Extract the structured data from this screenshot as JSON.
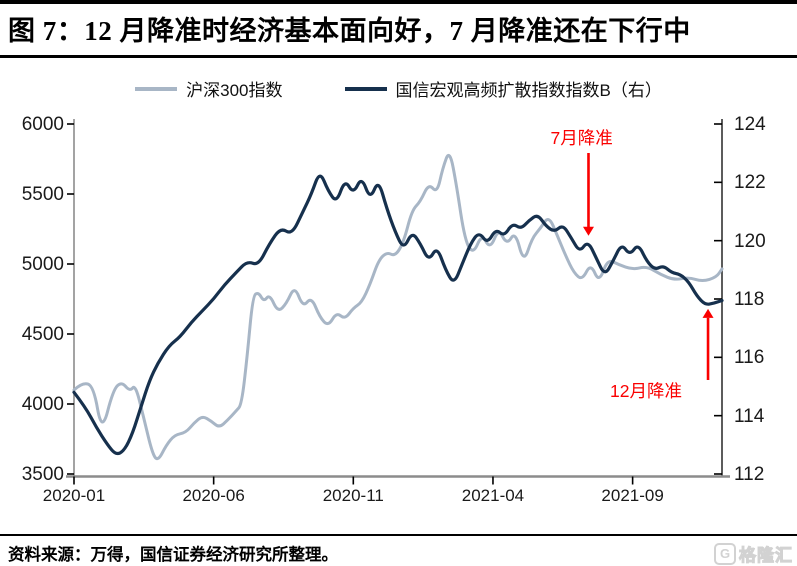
{
  "figure": {
    "title": "图 7：12 月降准时经济基本面向好，7 月降准还在下行中",
    "source_note": "资料来源：万得，国信证券经济研究所整理。",
    "watermark": {
      "icon_letter": "G",
      "text": "格隆汇"
    }
  },
  "colors": {
    "csi300": "#a8b6c6",
    "diffusion": "#16304d",
    "annotation_red": "#fa0000",
    "axis_line": "#8c8c8c",
    "tick_text": "#1a1a1a"
  },
  "legend": [
    {
      "id": "csi300",
      "label": "沪深300指数"
    },
    {
      "id": "diffusion",
      "label": "国信宏观高频扩散指数指数B（右）"
    }
  ],
  "chart_data": {
    "type": "line",
    "title": "",
    "x_unit": "months since 2020-01",
    "x_range": [
      0,
      23.2
    ],
    "x_tick_months": [
      0,
      5,
      10,
      15,
      20
    ],
    "x_tick_labels": [
      "2020-01",
      "2020-06",
      "2020-11",
      "2021-04",
      "2021-09"
    ],
    "left_axis": {
      "series": "沪深300指数",
      "range": [
        3500,
        6000
      ],
      "ticks": [
        6000,
        5500,
        5000,
        4500,
        4000,
        3500
      ]
    },
    "right_axis": {
      "series": "国信宏观高频扩散指数指数B",
      "range": [
        112,
        124
      ],
      "ticks": [
        124,
        122,
        120,
        118,
        116,
        114,
        112
      ]
    },
    "grid": false,
    "legend_position": "top",
    "series": [
      {
        "name": "沪深300指数",
        "axis": "left",
        "color_key": "csi300",
        "points": [
          [
            0,
            4100
          ],
          [
            0.3,
            4155
          ],
          [
            0.7,
            4130
          ],
          [
            1.0,
            3790
          ],
          [
            1.4,
            4100
          ],
          [
            1.7,
            4160
          ],
          [
            2.0,
            4090
          ],
          [
            2.2,
            4140
          ],
          [
            2.5,
            3900
          ],
          [
            2.8,
            3650
          ],
          [
            3.0,
            3590
          ],
          [
            3.3,
            3705
          ],
          [
            3.6,
            3780
          ],
          [
            4.0,
            3795
          ],
          [
            4.3,
            3865
          ],
          [
            4.6,
            3915
          ],
          [
            4.9,
            3880
          ],
          [
            5.2,
            3830
          ],
          [
            5.5,
            3885
          ],
          [
            5.8,
            3950
          ],
          [
            6.0,
            3995
          ],
          [
            6.2,
            4340
          ],
          [
            6.4,
            4770
          ],
          [
            6.6,
            4800
          ],
          [
            6.8,
            4730
          ],
          [
            7.0,
            4785
          ],
          [
            7.3,
            4655
          ],
          [
            7.6,
            4715
          ],
          [
            7.9,
            4845
          ],
          [
            8.2,
            4690
          ],
          [
            8.5,
            4765
          ],
          [
            8.8,
            4620
          ],
          [
            9.1,
            4555
          ],
          [
            9.4,
            4655
          ],
          [
            9.7,
            4605
          ],
          [
            10.0,
            4685
          ],
          [
            10.3,
            4725
          ],
          [
            10.6,
            4855
          ],
          [
            10.9,
            5025
          ],
          [
            11.2,
            5085
          ],
          [
            11.5,
            5055
          ],
          [
            11.8,
            5155
          ],
          [
            12.1,
            5385
          ],
          [
            12.4,
            5445
          ],
          [
            12.7,
            5575
          ],
          [
            13.0,
            5505
          ],
          [
            13.2,
            5685
          ],
          [
            13.45,
            5820
          ],
          [
            13.7,
            5555
          ],
          [
            14.0,
            5165
          ],
          [
            14.3,
            5070
          ],
          [
            14.6,
            5215
          ],
          [
            14.9,
            5105
          ],
          [
            15.2,
            5255
          ],
          [
            15.5,
            5135
          ],
          [
            15.8,
            5235
          ],
          [
            16.1,
            5005
          ],
          [
            16.4,
            5185
          ],
          [
            16.7,
            5255
          ],
          [
            17.0,
            5345
          ],
          [
            17.3,
            5205
          ],
          [
            17.6,
            5060
          ],
          [
            17.9,
            4935
          ],
          [
            18.2,
            4885
          ],
          [
            18.5,
            5005
          ],
          [
            18.8,
            4865
          ],
          [
            19.1,
            5035
          ],
          [
            19.5,
            4995
          ],
          [
            20.0,
            4960
          ],
          [
            20.5,
            4985
          ],
          [
            21.0,
            4925
          ],
          [
            21.5,
            4885
          ],
          [
            22.0,
            4905
          ],
          [
            22.5,
            4875
          ],
          [
            23.0,
            4905
          ],
          [
            23.2,
            4965
          ]
        ]
      },
      {
        "name": "国信宏观高频扩散指数指数B（右）",
        "axis": "right",
        "color_key": "diffusion",
        "points": [
          [
            0,
            114.8
          ],
          [
            0.4,
            114.3
          ],
          [
            0.8,
            113.6
          ],
          [
            1.2,
            113.0
          ],
          [
            1.5,
            112.65
          ],
          [
            1.8,
            112.8
          ],
          [
            2.1,
            113.4
          ],
          [
            2.4,
            114.3
          ],
          [
            2.7,
            115.2
          ],
          [
            3.0,
            115.8
          ],
          [
            3.4,
            116.4
          ],
          [
            3.8,
            116.7
          ],
          [
            4.2,
            117.2
          ],
          [
            4.6,
            117.6
          ],
          [
            5.0,
            118.0
          ],
          [
            5.4,
            118.5
          ],
          [
            5.8,
            118.9
          ],
          [
            6.2,
            119.3
          ],
          [
            6.6,
            119.15
          ],
          [
            7.0,
            119.9
          ],
          [
            7.4,
            120.45
          ],
          [
            7.8,
            120.2
          ],
          [
            8.2,
            121.0
          ],
          [
            8.5,
            121.6
          ],
          [
            8.8,
            122.4
          ],
          [
            9.1,
            121.7
          ],
          [
            9.4,
            121.3
          ],
          [
            9.7,
            122.1
          ],
          [
            10.0,
            121.6
          ],
          [
            10.3,
            122.2
          ],
          [
            10.6,
            121.4
          ],
          [
            10.9,
            122.1
          ],
          [
            11.2,
            121.1
          ],
          [
            11.5,
            120.3
          ],
          [
            11.8,
            119.7
          ],
          [
            12.1,
            120.3
          ],
          [
            12.4,
            119.9
          ],
          [
            12.7,
            119.3
          ],
          [
            13.0,
            119.8
          ],
          [
            13.3,
            119.0
          ],
          [
            13.6,
            118.5
          ],
          [
            13.9,
            119.2
          ],
          [
            14.2,
            119.9
          ],
          [
            14.5,
            120.3
          ],
          [
            14.8,
            119.9
          ],
          [
            15.1,
            120.4
          ],
          [
            15.4,
            120.15
          ],
          [
            15.7,
            120.6
          ],
          [
            16.0,
            120.4
          ],
          [
            16.3,
            120.7
          ],
          [
            16.6,
            120.9
          ],
          [
            16.9,
            120.5
          ],
          [
            17.2,
            120.3
          ],
          [
            17.5,
            120.55
          ],
          [
            17.8,
            120.1
          ],
          [
            18.1,
            119.6
          ],
          [
            18.4,
            120.0
          ],
          [
            18.7,
            119.4
          ],
          [
            19.0,
            118.8
          ],
          [
            19.3,
            119.3
          ],
          [
            19.6,
            119.9
          ],
          [
            19.9,
            119.5
          ],
          [
            20.2,
            119.9
          ],
          [
            20.5,
            119.3
          ],
          [
            20.8,
            119.0
          ],
          [
            21.1,
            119.15
          ],
          [
            21.4,
            118.9
          ],
          [
            21.7,
            118.85
          ],
          [
            22.0,
            118.6
          ],
          [
            22.3,
            118.1
          ],
          [
            22.6,
            117.8
          ],
          [
            22.9,
            117.85
          ],
          [
            23.2,
            117.95
          ]
        ]
      }
    ],
    "annotations": [
      {
        "label": "7月降准",
        "month": 18.42,
        "value": 120.1,
        "axis": "right",
        "arrow": "down"
      },
      {
        "label": "12月降准",
        "month": 22.7,
        "value": 117.8,
        "axis": "right",
        "arrow": "up"
      }
    ]
  }
}
